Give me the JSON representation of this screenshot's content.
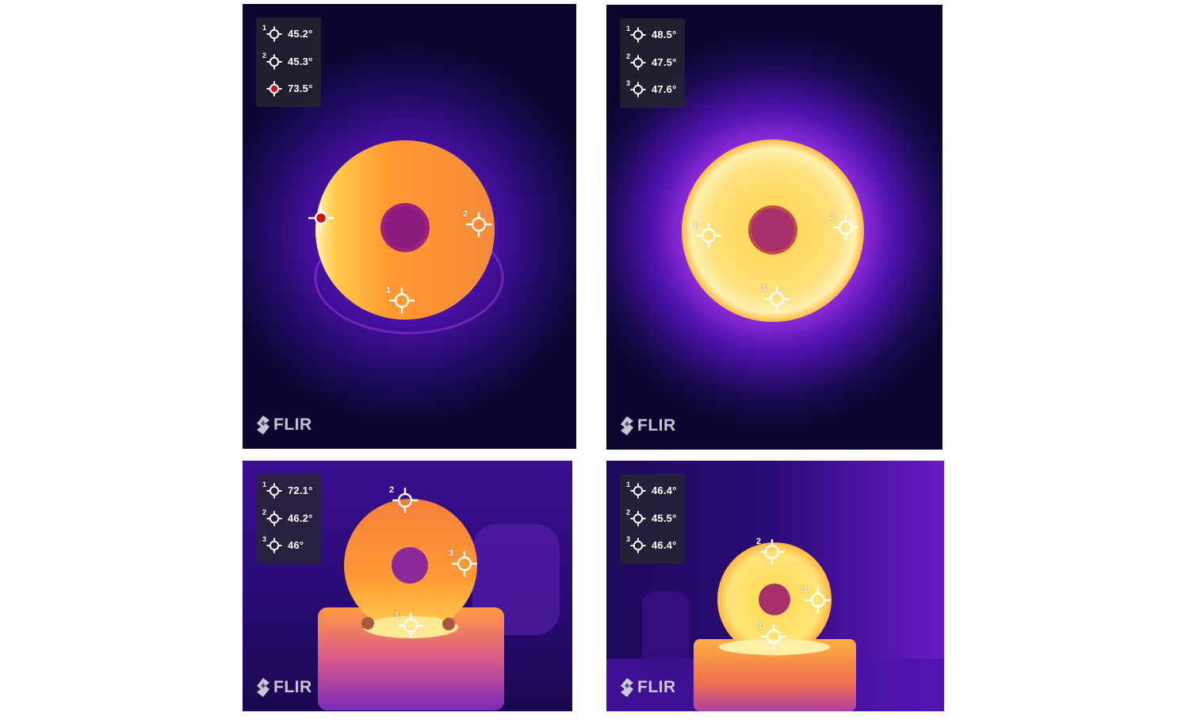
{
  "brand": "FLIR",
  "palette": {
    "background": "#0b0630",
    "cool": "#3a0b8a",
    "warm": "#ff8c2a",
    "hot": "#ffe060",
    "overlay": "#26262e",
    "hotspot": "#d41414"
  },
  "panels": [
    {
      "readings": [
        {
          "index": "1",
          "value": "45.2°",
          "icon": "crosshair-icon"
        },
        {
          "index": "2",
          "value": "45.3°",
          "icon": "crosshair-icon"
        },
        {
          "index": "",
          "value": "73.5°",
          "icon": "hotspot-crosshair-icon"
        }
      ],
      "markers": [
        {
          "label": "1"
        },
        {
          "label": "2"
        },
        {
          "label": ""
        }
      ]
    },
    {
      "readings": [
        {
          "index": "1",
          "value": "48.5°",
          "icon": "crosshair-icon"
        },
        {
          "index": "2",
          "value": "47.5°",
          "icon": "crosshair-icon"
        },
        {
          "index": "3",
          "value": "47.6°",
          "icon": "crosshair-icon"
        }
      ],
      "markers": [
        {
          "label": "1"
        },
        {
          "label": "2"
        },
        {
          "label": "3"
        }
      ]
    },
    {
      "readings": [
        {
          "index": "1",
          "value": "72.1°",
          "icon": "crosshair-icon"
        },
        {
          "index": "2",
          "value": "46.2°",
          "icon": "crosshair-icon"
        },
        {
          "index": "3",
          "value": "46°",
          "icon": "crosshair-icon"
        }
      ],
      "markers": [
        {
          "label": "1"
        },
        {
          "label": "2"
        },
        {
          "label": "3"
        }
      ]
    },
    {
      "readings": [
        {
          "index": "1",
          "value": "46.4°",
          "icon": "crosshair-icon"
        },
        {
          "index": "2",
          "value": "45.5°",
          "icon": "crosshair-icon"
        },
        {
          "index": "3",
          "value": "46.4°",
          "icon": "crosshair-icon"
        }
      ],
      "markers": [
        {
          "label": "1"
        },
        {
          "label": "2"
        },
        {
          "label": "3"
        }
      ]
    }
  ]
}
